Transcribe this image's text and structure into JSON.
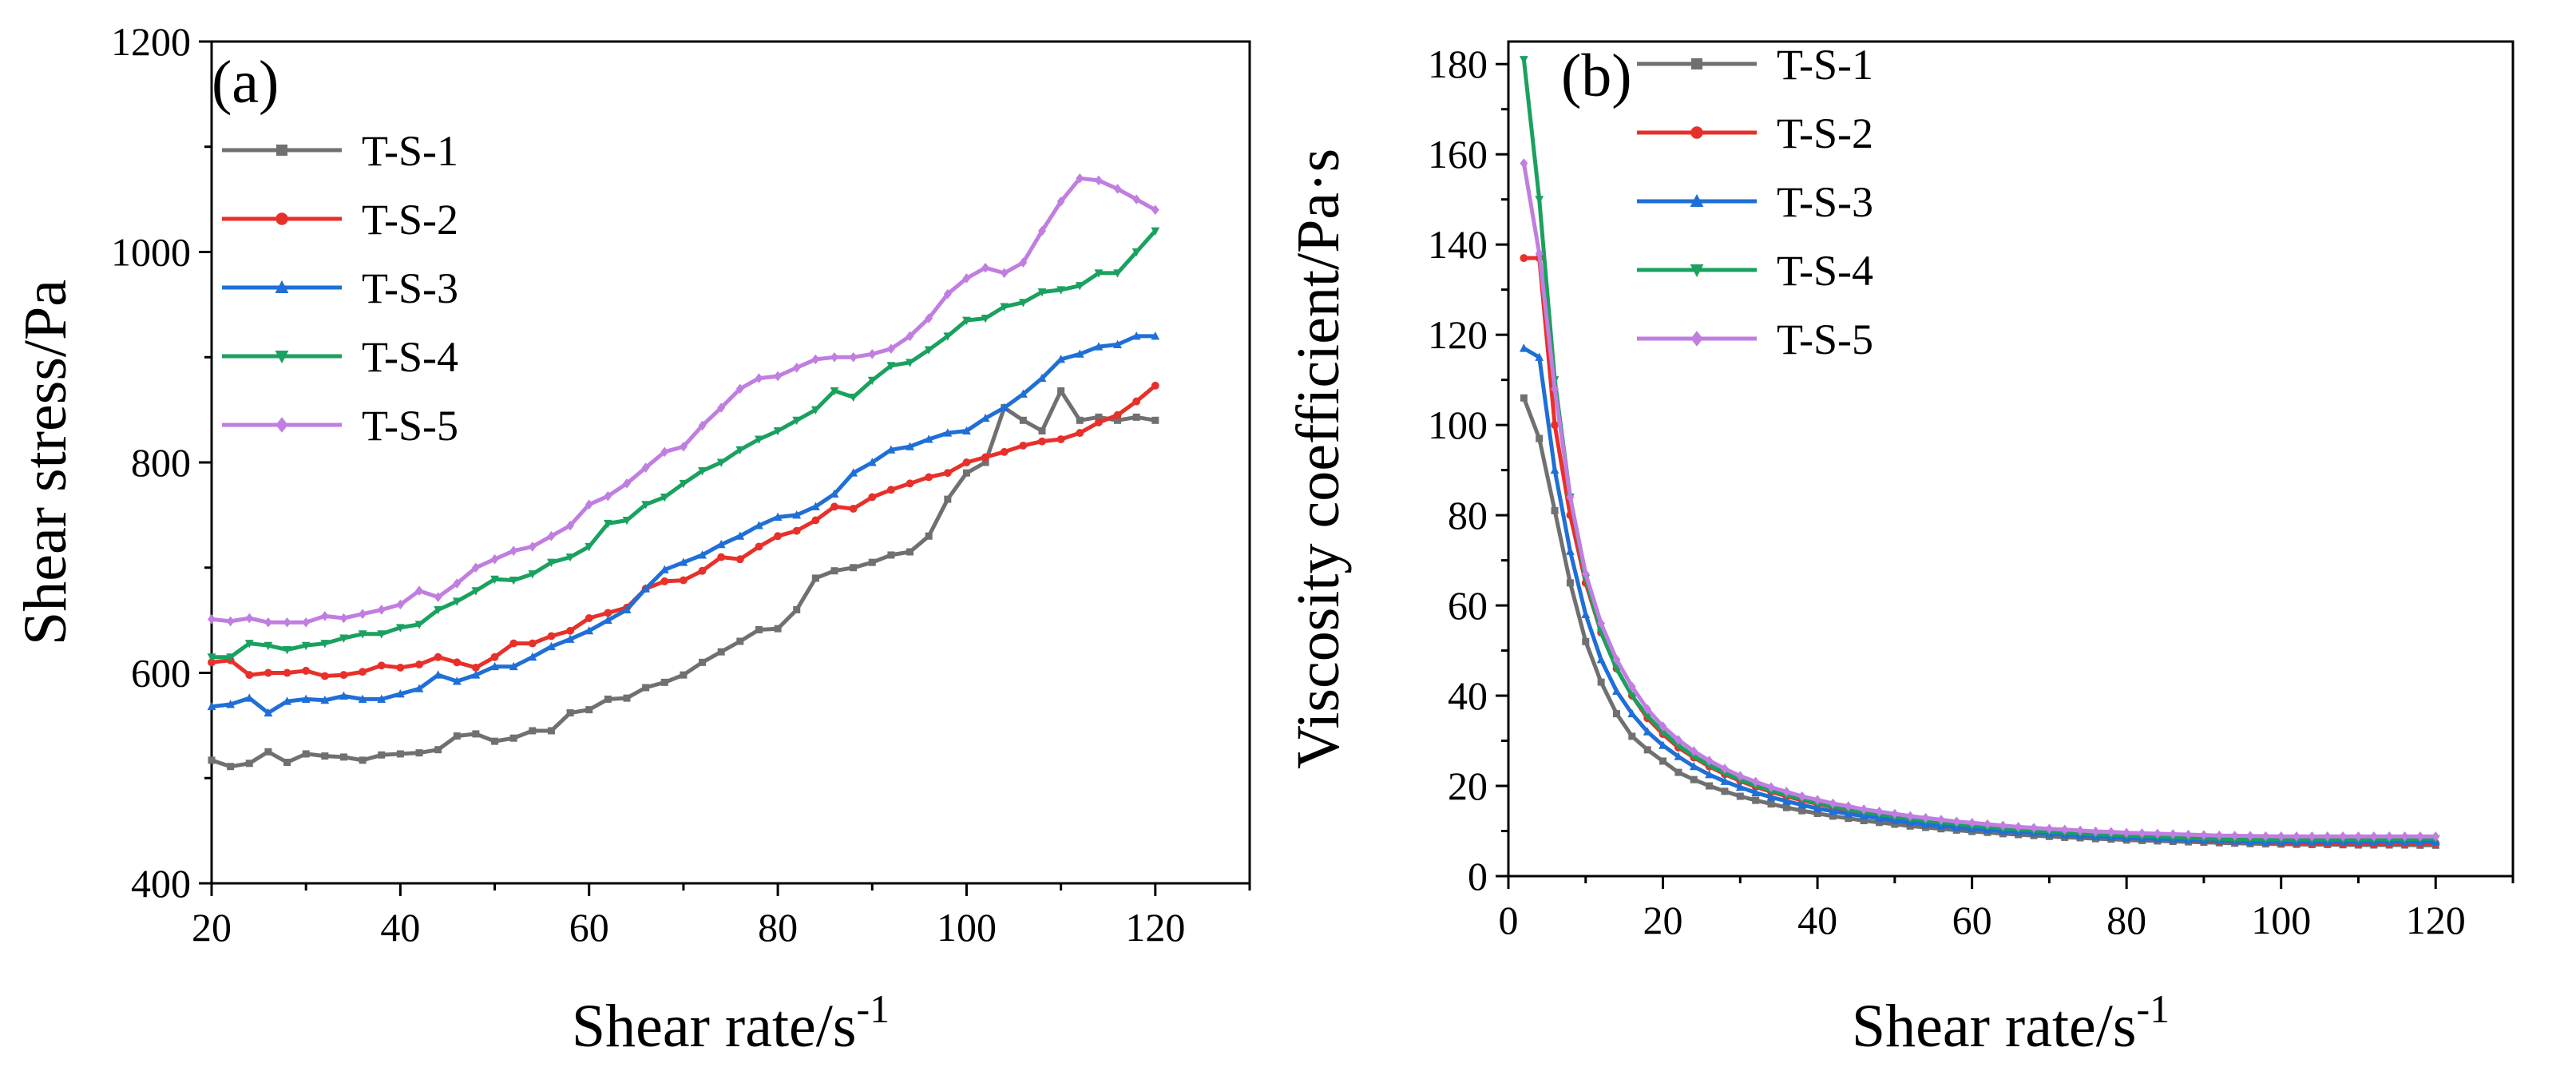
{
  "chart_data": [
    {
      "type": "line",
      "panel_label": "(a)",
      "xlabel": "Shear rate/s",
      "xlabel_sup": "-1",
      "ylabel": "Shear stress/Pa",
      "xlim": [
        20,
        130
      ],
      "ylim": [
        400,
        1200
      ],
      "xticks": [
        "20",
        "40",
        "60",
        "80",
        "100",
        "120"
      ],
      "yticks": [
        "400",
        "600",
        "800",
        "1000",
        "1200"
      ],
      "xtick_values": [
        20,
        40,
        60,
        80,
        100,
        120
      ],
      "ytick_values": [
        400,
        600,
        800,
        1000,
        1200
      ],
      "legend_position": "top-left",
      "x": [
        20,
        22,
        24,
        26,
        28,
        30,
        32,
        34,
        36,
        38,
        40,
        42,
        44,
        46,
        48,
        50,
        52,
        54,
        56,
        58,
        60,
        62,
        64,
        66,
        68,
        70,
        72,
        74,
        76,
        78,
        80,
        82,
        84,
        86,
        88,
        90,
        92,
        94,
        96,
        98,
        100,
        102,
        104,
        106,
        108,
        110,
        112,
        114,
        116,
        118,
        120
      ],
      "series": [
        {
          "name": "T-S-1",
          "color": "#707070",
          "marker": "square",
          "values": [
            517,
            511,
            514,
            525,
            515,
            523,
            521,
            520,
            517,
            522,
            523,
            524,
            527,
            540,
            542,
            535,
            538,
            545,
            545,
            562,
            565,
            575,
            576,
            586,
            591,
            598,
            610,
            620,
            630,
            641,
            642,
            660,
            690,
            697,
            700,
            705,
            712,
            715,
            730,
            765,
            790,
            800,
            852,
            840,
            830,
            868,
            840,
            843,
            840,
            843,
            840
          ]
        },
        {
          "name": "T-S-2",
          "color": "#e8302a",
          "marker": "circle",
          "values": [
            610,
            612,
            598,
            600,
            600,
            602,
            597,
            598,
            601,
            607,
            605,
            608,
            615,
            610,
            605,
            615,
            628,
            628,
            635,
            640,
            652,
            657,
            662,
            680,
            687,
            688,
            697,
            710,
            708,
            720,
            730,
            735,
            745,
            758,
            756,
            767,
            774,
            780,
            786,
            790,
            800,
            805,
            810,
            816,
            820,
            822,
            828,
            838,
            845,
            858,
            873
          ]
        },
        {
          "name": "T-S-3",
          "color": "#1f6fd6",
          "marker": "triangle-up",
          "values": [
            568,
            570,
            576,
            562,
            573,
            575,
            574,
            578,
            575,
            575,
            580,
            585,
            598,
            592,
            598,
            606,
            606,
            615,
            625,
            632,
            640,
            650,
            660,
            680,
            698,
            705,
            712,
            722,
            730,
            740,
            748,
            750,
            758,
            770,
            790,
            800,
            812,
            815,
            822,
            828,
            830,
            842,
            852,
            865,
            880,
            898,
            903,
            910,
            912,
            920,
            920
          ]
        },
        {
          "name": "T-S-4",
          "color": "#1aa15f",
          "marker": "triangle-down",
          "values": [
            615,
            615,
            628,
            626,
            622,
            626,
            628,
            633,
            637,
            637,
            643,
            646,
            660,
            668,
            678,
            689,
            688,
            694,
            705,
            710,
            720,
            742,
            745,
            760,
            767,
            780,
            792,
            800,
            812,
            822,
            830,
            840,
            850,
            868,
            862,
            878,
            892,
            895,
            907,
            920,
            935,
            937,
            948,
            952,
            962,
            964,
            968,
            980,
            980,
            1000,
            1020
          ]
        },
        {
          "name": "T-S-5",
          "color": "#c07ee0",
          "marker": "diamond",
          "values": [
            651,
            649,
            652,
            648,
            648,
            648,
            654,
            652,
            656,
            660,
            665,
            678,
            672,
            685,
            700,
            708,
            716,
            720,
            730,
            740,
            760,
            768,
            780,
            795,
            810,
            815,
            835,
            852,
            870,
            880,
            882,
            890,
            898,
            900,
            900,
            903,
            908,
            920,
            937,
            960,
            975,
            985,
            980,
            990,
            1020,
            1048,
            1070,
            1068,
            1060,
            1050,
            1040
          ]
        }
      ]
    },
    {
      "type": "line",
      "panel_label": "(b)",
      "xlabel": "Shear rate/s",
      "xlabel_sup": "-1",
      "ylabel": "Viscosity coefficient/Pa·s",
      "xlim": [
        0,
        130
      ],
      "ylim": [
        0,
        185
      ],
      "xticks": [
        "0",
        "20",
        "40",
        "60",
        "80",
        "100",
        "120"
      ],
      "yticks": [
        "0",
        "20",
        "40",
        "60",
        "80",
        "100",
        "120",
        "140",
        "160",
        "180"
      ],
      "xtick_values": [
        0,
        20,
        40,
        60,
        80,
        100,
        120
      ],
      "ytick_values": [
        0,
        20,
        40,
        60,
        80,
        100,
        120,
        140,
        160,
        180
      ],
      "legend_position": "top-center",
      "x": [
        2,
        4,
        6,
        8,
        10,
        12,
        14,
        16,
        18,
        20,
        22,
        24,
        26,
        28,
        30,
        32,
        34,
        36,
        38,
        40,
        42,
        44,
        46,
        48,
        50,
        52,
        54,
        56,
        58,
        60,
        62,
        64,
        66,
        68,
        70,
        72,
        74,
        76,
        78,
        80,
        82,
        84,
        86,
        88,
        90,
        92,
        94,
        96,
        98,
        100,
        102,
        104,
        106,
        108,
        110,
        112,
        114,
        116,
        118,
        120
      ],
      "series": [
        {
          "name": "T-S-1",
          "color": "#707070",
          "marker": "square",
          "values": [
            106,
            97,
            81,
            65,
            52,
            43,
            36,
            31,
            28,
            25.5,
            23,
            21.4,
            20.0,
            18.8,
            17.7,
            16.8,
            16.0,
            15.2,
            14.5,
            13.9,
            13.3,
            12.8,
            12.3,
            11.9,
            11.5,
            11.1,
            10.8,
            10.5,
            10.2,
            9.9,
            9.7,
            9.4,
            9.2,
            9.0,
            8.8,
            8.6,
            8.5,
            8.3,
            8.2,
            8.0,
            7.9,
            7.8,
            7.7,
            7.6,
            7.5,
            7.4,
            7.3,
            7.2,
            7.15,
            7.1,
            7.05,
            7.0,
            7.0,
            6.95,
            6.9,
            6.9,
            6.9,
            6.9,
            6.85,
            6.85
          ]
        },
        {
          "name": "T-S-2",
          "color": "#e8302a",
          "marker": "circle",
          "values": [
            137,
            137,
            100,
            80,
            65,
            54,
            46,
            40,
            35,
            31.5,
            28.5,
            26.3,
            24.3,
            22.6,
            21.1,
            19.8,
            18.7,
            17.7,
            16.8,
            16.0,
            15.3,
            14.6,
            14.0,
            13.5,
            13.0,
            12.5,
            12.1,
            11.7,
            11.4,
            11.0,
            10.7,
            10.4,
            10.1,
            9.9,
            9.6,
            9.4,
            9.2,
            9.0,
            8.8,
            8.6,
            8.5,
            8.3,
            8.2,
            8.1,
            7.9,
            7.8,
            7.7,
            7.6,
            7.5,
            7.4,
            7.35,
            7.3,
            7.25,
            7.2,
            7.2,
            7.15,
            7.15,
            7.2,
            7.2,
            7.25
          ]
        },
        {
          "name": "T-S-3",
          "color": "#1f6fd6",
          "marker": "triangle-up",
          "values": [
            117,
            115,
            90,
            72,
            58,
            48,
            41,
            36,
            32,
            29,
            26.5,
            24.3,
            22.5,
            21.0,
            19.7,
            18.5,
            17.5,
            16.6,
            15.8,
            15.0,
            14.4,
            13.8,
            13.3,
            12.8,
            12.3,
            11.9,
            11.5,
            11.2,
            10.8,
            10.5,
            10.3,
            10.0,
            9.8,
            9.6,
            9.4,
            9.2,
            9.0,
            8.8,
            8.7,
            8.5,
            8.4,
            8.3,
            8.2,
            8.1,
            8.0,
            7.9,
            7.8,
            7.7,
            7.7,
            7.6,
            7.6,
            7.6,
            7.6,
            7.6,
            7.6,
            7.6,
            7.65,
            7.65,
            7.7,
            7.7
          ]
        },
        {
          "name": "T-S-4",
          "color": "#1aa15f",
          "marker": "triangle-down",
          "values": [
            181,
            150,
            110,
            84,
            66,
            54,
            46,
            40,
            35.5,
            32,
            29,
            26.6,
            24.6,
            22.9,
            21.4,
            20.1,
            19.0,
            18.0,
            17.1,
            16.2,
            15.5,
            14.8,
            14.2,
            13.7,
            13.2,
            12.7,
            12.3,
            11.9,
            11.6,
            11.2,
            10.9,
            10.6,
            10.4,
            10.1,
            9.9,
            9.7,
            9.5,
            9.3,
            9.2,
            9.0,
            8.9,
            8.8,
            8.6,
            8.5,
            8.4,
            8.3,
            8.2,
            8.2,
            8.1,
            8.1,
            8.1,
            8.1,
            8.1,
            8.1,
            8.1,
            8.15,
            8.2,
            8.2,
            8.25,
            8.3
          ]
        },
        {
          "name": "T-S-5",
          "color": "#c07ee0",
          "marker": "diamond",
          "values": [
            158,
            138,
            108,
            84,
            67,
            56,
            48,
            42,
            37,
            33.2,
            30.2,
            27.7,
            25.6,
            23.8,
            22.2,
            20.9,
            19.7,
            18.7,
            17.7,
            16.9,
            16.1,
            15.5,
            14.8,
            14.3,
            13.8,
            13.3,
            12.9,
            12.5,
            12.1,
            11.8,
            11.5,
            11.2,
            10.9,
            10.7,
            10.5,
            10.3,
            10.1,
            9.9,
            9.8,
            9.6,
            9.5,
            9.4,
            9.3,
            9.2,
            9.1,
            9.0,
            8.95,
            8.9,
            8.85,
            8.8,
            8.8,
            8.8,
            8.8,
            8.8,
            8.8,
            8.8,
            8.8,
            8.8,
            8.8,
            8.8
          ]
        }
      ]
    }
  ]
}
